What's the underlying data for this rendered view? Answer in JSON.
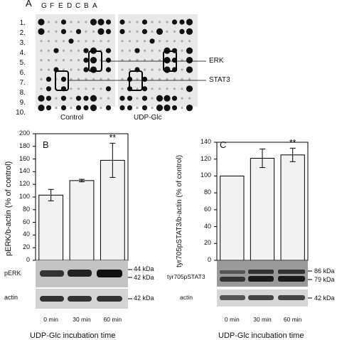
{
  "panel_a": {
    "letter": "A",
    "column_letters": [
      "G",
      "F",
      "E",
      "D",
      "C",
      "B",
      "A"
    ],
    "row_numbers": [
      "1.",
      "2.",
      "3.",
      "4.",
      "5.",
      "6.",
      "7.",
      "8.",
      "9.",
      "10."
    ],
    "blot_labels": [
      "Control",
      "UDP-Glc"
    ],
    "annotations": [
      "ERK",
      "STAT3"
    ]
  },
  "panel_b": {
    "letter": "B",
    "ylabel": "pERK/b-actin (% of control)",
    "band_labels": [
      "pERK",
      "actin"
    ],
    "kda_labels": [
      "44 kDa",
      "42 kDa",
      "42 kDa"
    ],
    "xlabel": "UDP-Glc incubation time",
    "significance": "**"
  },
  "panel_c": {
    "letter": "C",
    "ylabel": "tyr705pSTAT3/b-actin (% of control)",
    "band_labels": [
      "tyr705pSTAT3",
      "actin"
    ],
    "kda_labels": [
      "86 kDa",
      "79 kDa",
      "42 kDa"
    ],
    "xlabel": "UDP-Glc incubation time",
    "significance": "**"
  },
  "chart_data": [
    {
      "type": "bar",
      "categories": [
        "0 min",
        "30 min",
        "60 min"
      ],
      "values": [
        103,
        126,
        158
      ],
      "errors": [
        9,
        2,
        27
      ],
      "ylabel": "pERK/b-actin (% of control)",
      "xlabel": "UDP-Glc incubation time",
      "ylim": [
        0,
        200
      ],
      "yticks": [
        0,
        20,
        40,
        60,
        80,
        100,
        120,
        140,
        160,
        180,
        200
      ],
      "significance": {
        "category": "60 min",
        "label": "**"
      }
    },
    {
      "type": "bar",
      "categories": [
        "0 min",
        "30 min",
        "60 min"
      ],
      "values": [
        100,
        121,
        125
      ],
      "errors": [
        0,
        11,
        8
      ],
      "ylabel": "tyr705pSTAT3/b-actin (% of control)",
      "xlabel": "UDP-Glc incubation time",
      "ylim": [
        0,
        140
      ],
      "yticks": [
        0,
        20,
        40,
        60,
        80,
        100,
        120,
        140
      ],
      "significance": {
        "category": "60 min",
        "label": "**"
      }
    }
  ],
  "colors": {
    "bar_fill": "#f2f2f2",
    "membrane": "#d9d9d9",
    "ink": "#111111"
  }
}
